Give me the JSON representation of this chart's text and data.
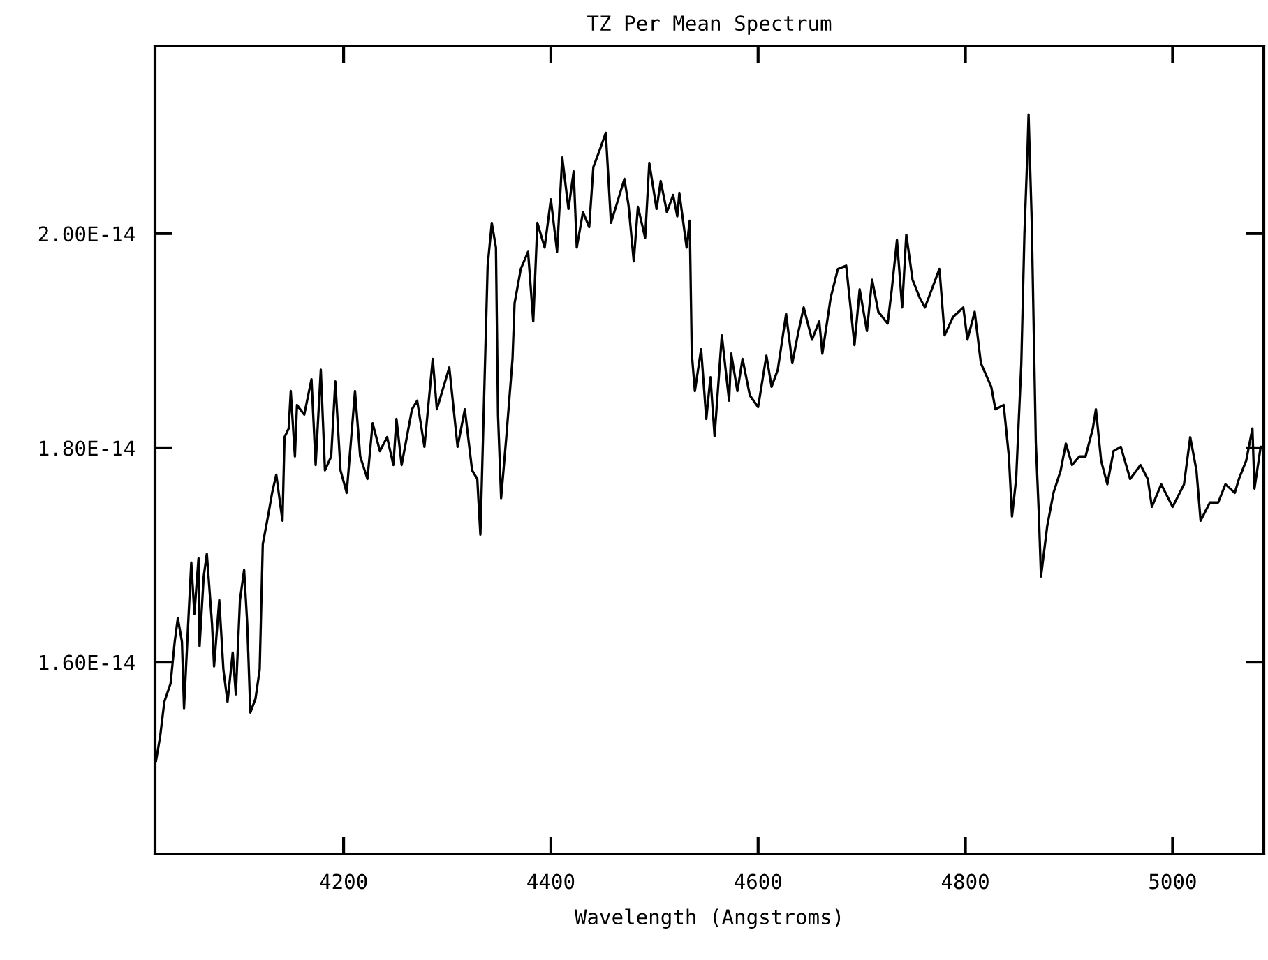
{
  "chart_data": {
    "type": "line",
    "title": "TZ Per Mean Spectrum",
    "xlabel": "Wavelength (Angstroms)",
    "xlim": [
      4018,
      5088
    ],
    "xticks": [
      4200,
      4400,
      4600,
      4800,
      5000
    ],
    "ylim": [
      1.421e-14,
      2.175e-14
    ],
    "yticks": [
      {
        "value": 1.6e-14,
        "label": "1.60E-14"
      },
      {
        "value": 1.8e-14,
        "label": "1.80E-14"
      },
      {
        "value": 2e-14,
        "label": "2.00E-14"
      }
    ],
    "grid": false,
    "marker": "none",
    "line_style": "solid",
    "series": [
      {
        "color": "#000000",
        "x": [
          4019,
          4023,
          4027,
          4033,
          4037,
          4040,
          4044,
          4046,
          4050,
          4053,
          4056,
          4060,
          4061,
          4065,
          4068,
          4073,
          4075,
          4080,
          4084,
          4088,
          4093,
          4096,
          4100,
          4104,
          4107,
          4110,
          4115,
          4119,
          4122,
          4127,
          4131,
          4135,
          4141,
          4143,
          4147,
          4149,
          4153,
          4155,
          4162,
          4169,
          4173,
          4178,
          4182,
          4188,
          4192,
          4197,
          4203,
          4211,
          4216,
          4223,
          4228,
          4235,
          4242,
          4248,
          4251,
          4256,
          4266,
          4271,
          4278,
          4286,
          4290,
          4302,
          4310,
          4317,
          4324,
          4329,
          4332,
          4336,
          4339,
          4343,
          4347,
          4349,
          4352,
          4357,
          4363,
          4365,
          4371,
          4378,
          4383,
          4387,
          4394,
          4400,
          4406,
          4411,
          4417,
          4422,
          4425,
          4431,
          4437,
          4441,
          4446,
          4453,
          4458,
          4465,
          4471,
          4475,
          4480,
          4484,
          4491,
          4495,
          4502,
          4506,
          4512,
          4518,
          4522,
          4524,
          4531,
          4534,
          4536,
          4539,
          4545,
          4550,
          4554,
          4558,
          4565,
          4572,
          4574,
          4580,
          4585,
          4592,
          4600,
          4608,
          4613,
          4619,
          4627,
          4633,
          4639,
          4644,
          4652,
          4659,
          4662,
          4670,
          4677,
          4685,
          4693,
          4698,
          4705,
          4710,
          4716,
          4725,
          4729,
          4734,
          4739,
          4743,
          4749,
          4756,
          4761,
          4775,
          4780,
          4788,
          4798,
          4802,
          4809,
          4815,
          4825,
          4829,
          4837,
          4842,
          4845,
          4849,
          4854,
          4857,
          4860,
          4861,
          4864,
          4868,
          4871,
          4873,
          4879,
          4885,
          4892,
          4897,
          4903,
          4910,
          4916,
          4923,
          4926,
          4931,
          4937,
          4943,
          4950,
          4959,
          4969,
          4976,
          4980,
          4989,
          5000,
          5011,
          5017,
          5023,
          5027,
          5036,
          5044,
          5051,
          5060,
          5064,
          5071,
          5077,
          5079,
          5085
        ],
        "values": [
          1.508e-14,
          1.531e-14,
          1.563e-14,
          1.58e-14,
          1.619e-14,
          1.641e-14,
          1.619e-14,
          1.557e-14,
          1.636e-14,
          1.693e-14,
          1.645e-14,
          1.697e-14,
          1.615e-14,
          1.68e-14,
          1.701e-14,
          1.636e-14,
          1.596e-14,
          1.658e-14,
          1.593e-14,
          1.563e-14,
          1.609e-14,
          1.57e-14,
          1.658e-14,
          1.686e-14,
          1.636e-14,
          1.553e-14,
          1.566e-14,
          1.593e-14,
          1.71e-14,
          1.736e-14,
          1.758e-14,
          1.775e-14,
          1.732e-14,
          1.81e-14,
          1.818e-14,
          1.853e-14,
          1.792e-14,
          1.84e-14,
          1.831e-14,
          1.864e-14,
          1.784e-14,
          1.873e-14,
          1.779e-14,
          1.792e-14,
          1.862e-14,
          1.779e-14,
          1.758e-14,
          1.853e-14,
          1.792e-14,
          1.771e-14,
          1.823e-14,
          1.797e-14,
          1.81e-14,
          1.784e-14,
          1.827e-14,
          1.784e-14,
          1.836e-14,
          1.844e-14,
          1.801e-14,
          1.883e-14,
          1.836e-14,
          1.875e-14,
          1.801e-14,
          1.836e-14,
          1.779e-14,
          1.771e-14,
          1.719e-14,
          1.862e-14,
          1.97e-14,
          2.01e-14,
          1.987e-14,
          1.831e-14,
          1.753e-14,
          1.81e-14,
          1.883e-14,
          1.935e-14,
          1.967e-14,
          1.983e-14,
          1.918e-14,
          2.01e-14,
          1.987e-14,
          2.032e-14,
          1.983e-14,
          2.071e-14,
          2.023e-14,
          2.058e-14,
          1.987e-14,
          2.02e-14,
          2.006e-14,
          2.062e-14,
          2.075e-14,
          2.094e-14,
          2.01e-14,
          2.032e-14,
          2.051e-14,
          2.026e-14,
          1.974e-14,
          2.025e-14,
          1.996e-14,
          2.066e-14,
          2.023e-14,
          2.049e-14,
          2.02e-14,
          2.036e-14,
          2.016e-14,
          2.038e-14,
          1.987e-14,
          2.012e-14,
          1.888e-14,
          1.853e-14,
          1.892e-14,
          1.827e-14,
          1.866e-14,
          1.811e-14,
          1.905e-14,
          1.844e-14,
          1.888e-14,
          1.853e-14,
          1.883e-14,
          1.849e-14,
          1.838e-14,
          1.886e-14,
          1.857e-14,
          1.873e-14,
          1.925e-14,
          1.879e-14,
          1.909e-14,
          1.931e-14,
          1.901e-14,
          1.918e-14,
          1.888e-14,
          1.94e-14,
          1.967e-14,
          1.97e-14,
          1.896e-14,
          1.948e-14,
          1.909e-14,
          1.957e-14,
          1.927e-14,
          1.916e-14,
          1.948e-14,
          1.994e-14,
          1.931e-14,
          1.999e-14,
          1.957e-14,
          1.94e-14,
          1.931e-14,
          1.967e-14,
          1.905e-14,
          1.922e-14,
          1.931e-14,
          1.901e-14,
          1.927e-14,
          1.879e-14,
          1.857e-14,
          1.836e-14,
          1.84e-14,
          1.792e-14,
          1.736e-14,
          1.771e-14,
          1.879e-14,
          2e-14,
          2.079e-14,
          2.111e-14,
          2.013e-14,
          1.805e-14,
          1.736e-14,
          1.68e-14,
          1.727e-14,
          1.758e-14,
          1.779e-14,
          1.804e-14,
          1.784e-14,
          1.792e-14,
          1.792e-14,
          1.818e-14,
          1.836e-14,
          1.788e-14,
          1.766e-14,
          1.797e-14,
          1.801e-14,
          1.771e-14,
          1.784e-14,
          1.771e-14,
          1.745e-14,
          1.766e-14,
          1.745e-14,
          1.766e-14,
          1.81e-14,
          1.779e-14,
          1.732e-14,
          1.749e-14,
          1.749e-14,
          1.766e-14,
          1.758e-14,
          1.771e-14,
          1.788e-14,
          1.818e-14,
          1.762e-14,
          1.801e-14
        ]
      }
    ]
  }
}
